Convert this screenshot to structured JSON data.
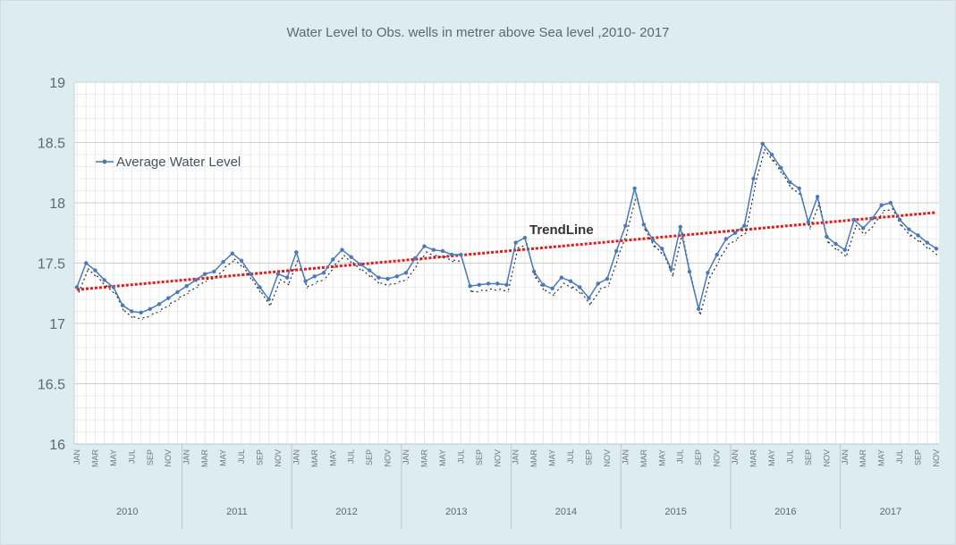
{
  "chart_data": {
    "type": "line",
    "title": "Water Level to Obs. wells in metrer above  Sea level ,2010- 2017",
    "ylim": [
      16,
      19
    ],
    "yticks": [
      "16",
      "16.5",
      "17",
      "17.5",
      "18",
      "18.5",
      "19"
    ],
    "grid": true,
    "legend_position": "top-left",
    "month_labels": [
      "JAN",
      "MAR",
      "MAY",
      "JUL",
      "SEP",
      "NOV"
    ],
    "years": [
      "2010",
      "2011",
      "2012",
      "2013",
      "2014",
      "2015",
      "2016",
      "2017"
    ],
    "series": [
      {
        "name": "Average Water Level",
        "color": "#4a79b8",
        "values": [
          17.3,
          17.5,
          17.44,
          17.36,
          17.3,
          17.15,
          17.1,
          17.09,
          17.12,
          17.16,
          17.21,
          17.26,
          17.31,
          17.36,
          17.41,
          17.43,
          17.51,
          17.58,
          17.52,
          17.41,
          17.3,
          17.2,
          17.41,
          17.38,
          17.59,
          17.35,
          17.39,
          17.42,
          17.53,
          17.61,
          17.55,
          17.49,
          17.44,
          17.38,
          17.37,
          17.39,
          17.42,
          17.54,
          17.64,
          17.61,
          17.6,
          17.57,
          17.57,
          17.31,
          17.32,
          17.33,
          17.33,
          17.32,
          17.67,
          17.71,
          17.43,
          17.32,
          17.29,
          17.38,
          17.35,
          17.3,
          17.21,
          17.33,
          17.37,
          17.6,
          17.81,
          18.12,
          17.82,
          17.69,
          17.62,
          17.45,
          17.8,
          17.43,
          17.12,
          17.42,
          17.57,
          17.7,
          17.75,
          17.81,
          18.2,
          18.49,
          18.4,
          18.29,
          18.17,
          18.12,
          17.84,
          18.05,
          17.72,
          17.66,
          17.61,
          17.86,
          17.79,
          17.87,
          17.98,
          18.0,
          17.86,
          17.78,
          17.73,
          17.67,
          17.62
        ]
      },
      {
        "name": "TrendLine",
        "color": "#e31b1b",
        "values": [
          17.28,
          17.92
        ]
      }
    ],
    "trend_label": "TrendLine"
  }
}
